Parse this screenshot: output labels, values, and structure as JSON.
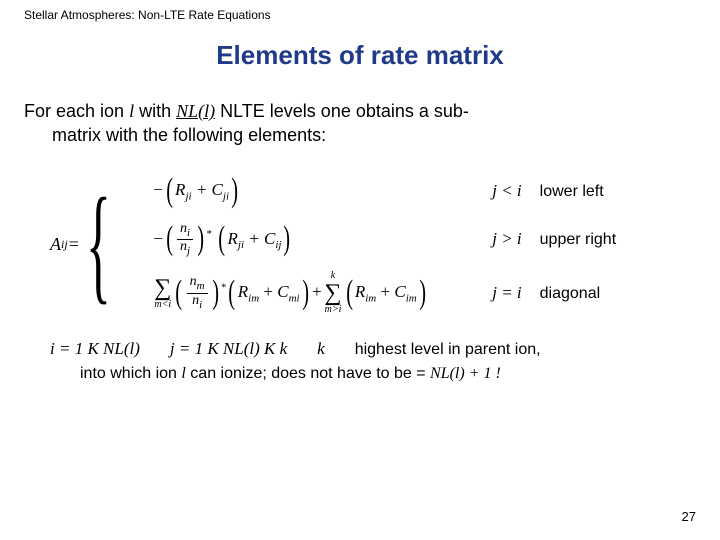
{
  "header": "Stellar Atmospheres:  Non-LTE Rate Equations",
  "title": "Elements of rate matrix",
  "intro": {
    "pre": "For each ion ",
    "ion": "l",
    "mid": " with ",
    "nll": "NL(l)",
    "post": " NLTE levels one obtains a sub-",
    "line2": "matrix with the following elements:"
  },
  "math": {
    "lhs": {
      "A": "A",
      "sub": "ij",
      "eq": " ="
    },
    "case1": {
      "expr_neg": "−",
      "lp": "(",
      "R": "R",
      "R_sub": "ji",
      "plus": " + ",
      "C": "C",
      "C_sub": "ji",
      "rp": ")",
      "cond": "j < i",
      "note": "lower left"
    },
    "case2": {
      "neg": "−",
      "frac_num_n": "n",
      "frac_num_sub": "i",
      "frac_den_n": "n",
      "frac_den_sub": "j",
      "star": "*",
      "R": "R",
      "R_sub": "ji",
      "plus": " + ",
      "C": "C",
      "C_sub": "ij",
      "cond": "j > i",
      "note": "upper right"
    },
    "case3": {
      "sum1_top": "",
      "sum1_bot": "m<i",
      "frac_num_n": "n",
      "frac_num_sub": "m",
      "frac_den_n": "n",
      "frac_den_sub": "i",
      "star": "*",
      "R1": "R",
      "R1_sub": "im",
      "C1": "C",
      "C1_sub": "mi",
      "plus_mid": "+",
      "sum2_top": "k",
      "sum2_bot": "m>i",
      "R2": "R",
      "R2_sub": "im",
      "C2": "C",
      "C2_sub": "im",
      "cond": "j = i",
      "note": "diagonal"
    }
  },
  "bottom": {
    "i_range": "i = 1 K  NL(l)",
    "j_range": "j = 1 K  NL(l) K  k",
    "k_desc_pre": "k",
    "k_desc": "highest level in parent ion,",
    "line2_pre": "into which ion ",
    "line2_l": "l",
    "line2_mid": " can ionize; does not have to be  = ",
    "line2_nl": "NL(l)",
    "line2_post": " + 1 !"
  },
  "page": "27",
  "colors": {
    "title": "#1f3a8a",
    "text": "#000000",
    "bg": "#ffffff"
  }
}
